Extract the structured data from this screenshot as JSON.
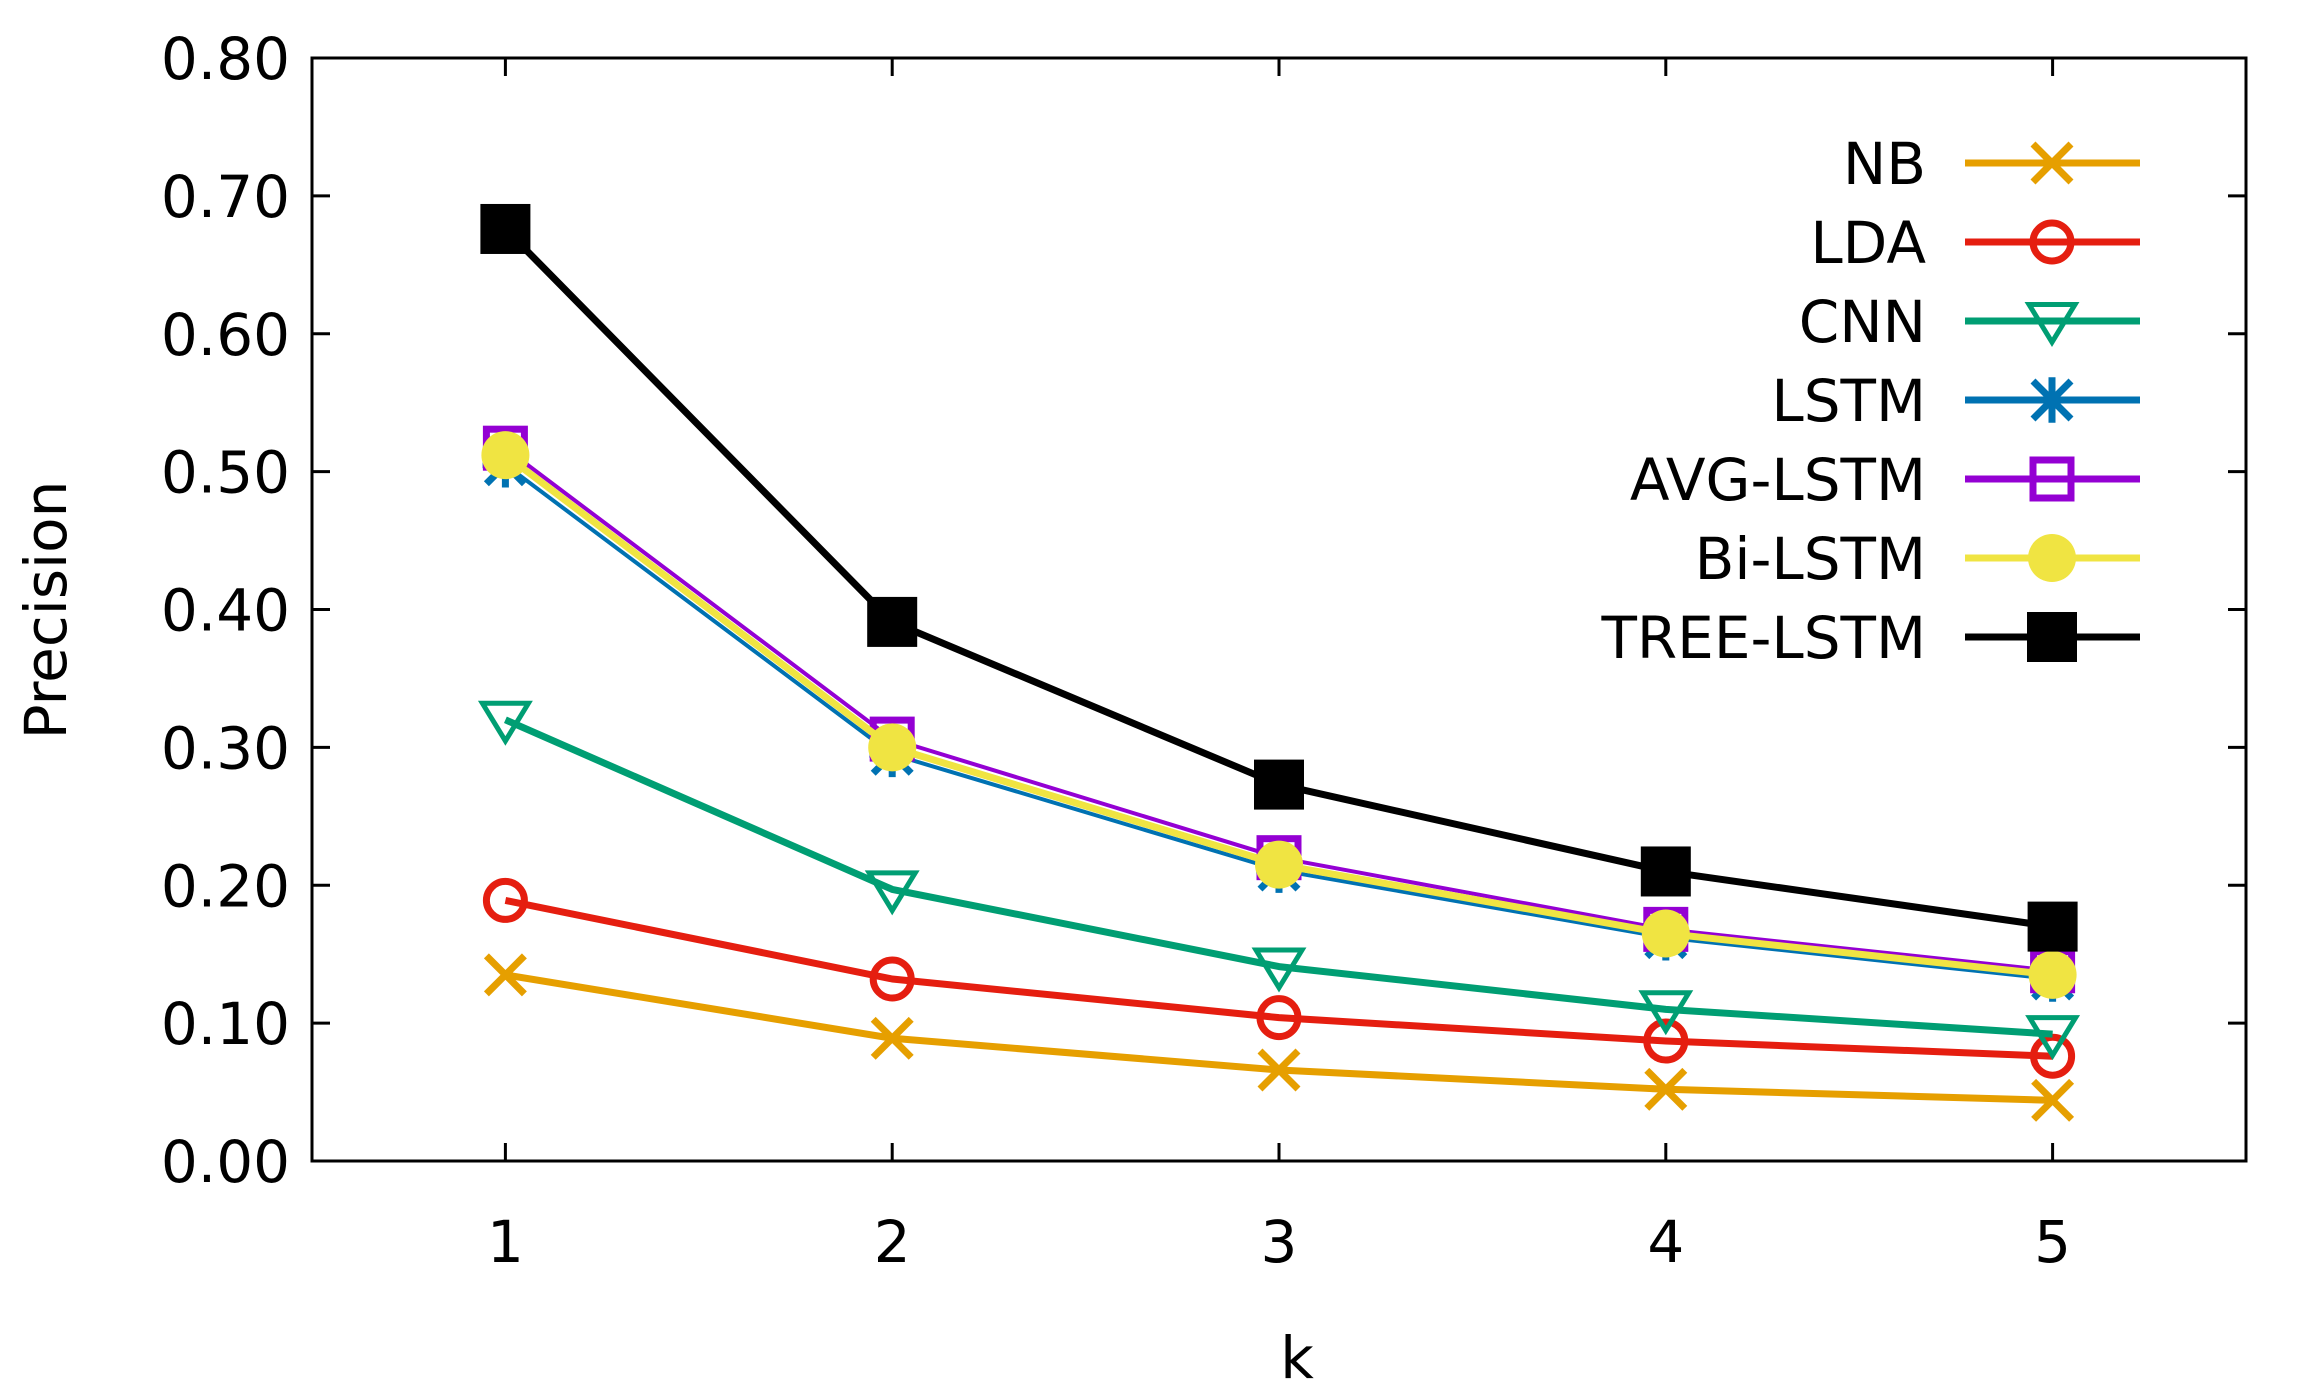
{
  "chart_data": {
    "type": "line",
    "title": "",
    "xlabel": "k",
    "ylabel": "Precision",
    "x": [
      1,
      2,
      3,
      4,
      5
    ],
    "x_tick_labels": [
      "1",
      "2",
      "3",
      "4",
      "5"
    ],
    "xlim": [
      0.5,
      5.5
    ],
    "ylim": [
      0.0,
      0.8
    ],
    "y_ticks": [
      0.0,
      0.1,
      0.2,
      0.3,
      0.4,
      0.5,
      0.6,
      0.7,
      0.8
    ],
    "y_tick_labels": [
      "0.00",
      "0.10",
      "0.20",
      "0.30",
      "0.40",
      "0.50",
      "0.60",
      "0.70",
      "0.80"
    ],
    "grid": false,
    "legend_position": "top-right",
    "series": [
      {
        "name": "NB",
        "color": "#e69f00",
        "marker": "cross",
        "values": [
          0.135,
          0.089,
          0.066,
          0.052,
          0.044
        ]
      },
      {
        "name": "LDA",
        "color": "#e51e10",
        "marker": "circle-open",
        "values": [
          0.189,
          0.132,
          0.104,
          0.087,
          0.076
        ]
      },
      {
        "name": "CNN",
        "color": "#009e73",
        "marker": "triangle-down-open",
        "values": [
          0.32,
          0.197,
          0.141,
          0.11,
          0.092
        ]
      },
      {
        "name": "LSTM",
        "color": "#0072b2",
        "marker": "asterisk",
        "values": [
          0.505,
          0.295,
          0.211,
          0.162,
          0.132
        ]
      },
      {
        "name": "AVG-LSTM",
        "color": "#9400d3",
        "marker": "square-open",
        "values": [
          0.517,
          0.306,
          0.22,
          0.168,
          0.138
        ]
      },
      {
        "name": "Bi-LSTM",
        "color": "#f0e442",
        "marker": "circle-filled",
        "values": [
          0.512,
          0.3,
          0.215,
          0.165,
          0.135
        ]
      },
      {
        "name": "TREE-LSTM",
        "color": "#000000",
        "marker": "square-filled",
        "values": [
          0.676,
          0.391,
          0.273,
          0.21,
          0.17
        ]
      }
    ]
  }
}
